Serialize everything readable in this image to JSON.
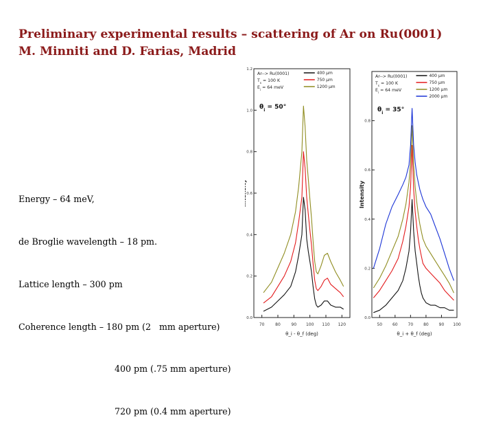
{
  "title": {
    "line1": "Preliminary experimental results – scattering of Ar on Ru(0001)",
    "line2": "M. Minniti and D. Farias, Madrid"
  },
  "notes": [
    "Energy – 64 meV,",
    "de Broglie wavelength – 18 pm.",
    "Lattice length – 300 pm",
    "Coherence length – 180 pm (2   mm aperture)",
    "400 pm (.75 mm aperture)",
    "720 pm (0.4 mm aperture)"
  ],
  "chart_data": [
    {
      "type": "line",
      "legend_title": [
        "Ar--> Ru(0001)",
        "T_s = 100 K",
        "E_i = 64 meV"
      ],
      "angle_label": "θ_i = 50°",
      "ylabel": "Intensity",
      "xlabel": "θ_i - θ_f (deg)",
      "xlim": [
        65,
        125
      ],
      "ylim": [
        0,
        1.2
      ],
      "xticks": [
        70,
        80,
        90,
        100,
        110,
        120
      ],
      "yticks": [
        0.0,
        0.2,
        0.4,
        0.6,
        0.8,
        1.0,
        1.2
      ],
      "ytick_labels": [
        "0.0",
        "0.2",
        "0.4",
        "0.6",
        "0.8",
        "1.0",
        "1.2"
      ],
      "legend_position": "top-right",
      "series": [
        {
          "name": "400 μm",
          "color": "#111111",
          "x": [
            71,
            76,
            80,
            84,
            88,
            91,
            93,
            95,
            96,
            97,
            98,
            99,
            100,
            101,
            102,
            103,
            104,
            105,
            107,
            109,
            111,
            113,
            116,
            119,
            121
          ],
          "y": [
            0.03,
            0.05,
            0.08,
            0.11,
            0.15,
            0.22,
            0.3,
            0.4,
            0.58,
            0.52,
            0.38,
            0.32,
            0.27,
            0.22,
            0.15,
            0.09,
            0.06,
            0.05,
            0.06,
            0.08,
            0.08,
            0.06,
            0.05,
            0.05,
            0.04
          ]
        },
        {
          "name": "750 μm",
          "color": "#e31a1c",
          "x": [
            71,
            76,
            80,
            84,
            88,
            91,
            93,
            95,
            96,
            97,
            98,
            99,
            100,
            101,
            102,
            103,
            104,
            105,
            107,
            109,
            111,
            113,
            116,
            119,
            121
          ],
          "y": [
            0.07,
            0.1,
            0.15,
            0.2,
            0.27,
            0.36,
            0.46,
            0.58,
            0.8,
            0.72,
            0.58,
            0.5,
            0.42,
            0.35,
            0.26,
            0.18,
            0.14,
            0.13,
            0.15,
            0.18,
            0.19,
            0.16,
            0.14,
            0.12,
            0.1
          ]
        },
        {
          "name": "1200 μm",
          "color": "#8f8c1f",
          "x": [
            71,
            76,
            80,
            84,
            88,
            91,
            93,
            95,
            96,
            97,
            98,
            99,
            100,
            101,
            102,
            103,
            104,
            105,
            107,
            109,
            111,
            113,
            116,
            119,
            121
          ],
          "y": [
            0.12,
            0.17,
            0.24,
            0.31,
            0.4,
            0.51,
            0.63,
            0.8,
            1.02,
            0.92,
            0.76,
            0.67,
            0.57,
            0.48,
            0.37,
            0.27,
            0.22,
            0.21,
            0.25,
            0.3,
            0.31,
            0.27,
            0.22,
            0.18,
            0.15
          ]
        }
      ]
    },
    {
      "type": "line",
      "legend_title": [
        "Ar--> Ru(0001)",
        "T_s = 100 K",
        "E_i = 64 meV"
      ],
      "angle_label": "θ_i = 35°",
      "ylabel": "Intensity",
      "xlabel": "θ_i + θ_f (deg)",
      "xlim": [
        45,
        100
      ],
      "ylim": [
        0,
        1.0
      ],
      "xticks": [
        50,
        60,
        70,
        80,
        90,
        100
      ],
      "yticks": [
        0.0,
        0.2,
        0.4,
        0.6,
        0.8
      ],
      "ytick_labels": [
        "0.0",
        "0.2",
        "0.4",
        "0.6",
        "0.8"
      ],
      "legend_position": "top-right",
      "series": [
        {
          "name": "400 μm",
          "color": "#111111",
          "x": [
            46,
            50,
            54,
            58,
            62,
            65,
            67,
            69,
            70,
            71,
            72,
            73,
            74,
            75,
            76,
            77,
            78,
            80,
            83,
            86,
            89,
            92,
            95,
            98
          ],
          "y": [
            0.02,
            0.03,
            0.05,
            0.08,
            0.11,
            0.15,
            0.2,
            0.27,
            0.35,
            0.48,
            0.35,
            0.27,
            0.22,
            0.17,
            0.13,
            0.1,
            0.08,
            0.06,
            0.05,
            0.05,
            0.04,
            0.04,
            0.03,
            0.03
          ]
        },
        {
          "name": "750 μm",
          "color": "#e31a1c",
          "x": [
            46,
            50,
            54,
            58,
            62,
            65,
            67,
            69,
            70,
            71,
            72,
            73,
            74,
            75,
            76,
            77,
            78,
            80,
            83,
            86,
            89,
            92,
            95,
            98
          ],
          "y": [
            0.08,
            0.11,
            0.15,
            0.19,
            0.24,
            0.31,
            0.37,
            0.45,
            0.53,
            0.7,
            0.52,
            0.43,
            0.37,
            0.32,
            0.28,
            0.25,
            0.22,
            0.2,
            0.18,
            0.16,
            0.14,
            0.11,
            0.09,
            0.07
          ]
        },
        {
          "name": "1200 μm",
          "color": "#8f8c1f",
          "x": [
            46,
            50,
            54,
            58,
            62,
            65,
            67,
            69,
            70,
            71,
            72,
            73,
            74,
            75,
            76,
            77,
            78,
            80,
            83,
            86,
            89,
            92,
            95,
            98
          ],
          "y": [
            0.12,
            0.16,
            0.21,
            0.27,
            0.33,
            0.4,
            0.46,
            0.55,
            0.63,
            0.78,
            0.62,
            0.53,
            0.47,
            0.42,
            0.38,
            0.35,
            0.32,
            0.29,
            0.26,
            0.23,
            0.2,
            0.17,
            0.14,
            0.1
          ]
        },
        {
          "name": "2000 μm",
          "color": "#1a33d6",
          "x": [
            46,
            50,
            54,
            58,
            62,
            65,
            67,
            69,
            70,
            71,
            72,
            73,
            74,
            75,
            76,
            77,
            78,
            80,
            83,
            86,
            89,
            92,
            95,
            98
          ],
          "y": [
            0.2,
            0.28,
            0.38,
            0.45,
            0.5,
            0.54,
            0.57,
            0.62,
            0.7,
            0.85,
            0.7,
            0.63,
            0.58,
            0.55,
            0.52,
            0.5,
            0.48,
            0.45,
            0.42,
            0.37,
            0.32,
            0.26,
            0.2,
            0.15
          ]
        }
      ]
    }
  ]
}
